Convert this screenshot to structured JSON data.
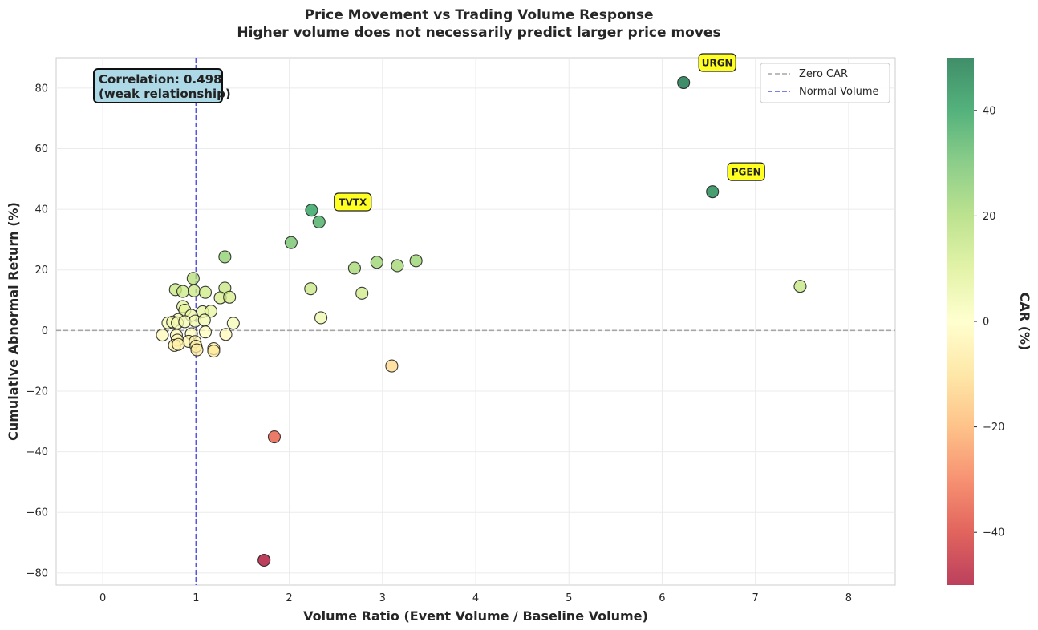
{
  "chart_data": {
    "type": "scatter",
    "title": "Price Movement vs Trading Volume Response",
    "subtitle": "Higher volume does not necessarily predict larger price moves",
    "xlabel": "Volume Ratio (Event Volume / Baseline Volume)",
    "ylabel": "Cumulative Abnormal Return (%)",
    "xlim": [
      -0.5,
      8.5
    ],
    "ylim": [
      -84,
      90
    ],
    "xticks": [
      0,
      1,
      2,
      3,
      4,
      5,
      6,
      7,
      8
    ],
    "yticks": [
      -80,
      -60,
      -40,
      -20,
      0,
      20,
      40,
      60,
      80
    ],
    "xtick_labels": [
      "0",
      "1",
      "2",
      "3",
      "4",
      "5",
      "6",
      "7",
      "8"
    ],
    "ytick_labels": [
      "−80",
      "−60",
      "−40",
      "−20",
      "0",
      "20",
      "40",
      "60",
      "80"
    ],
    "grid": true,
    "colormap": "RdYlGn",
    "colorbar": {
      "label": "CAR (%)",
      "range": [
        -50,
        50
      ],
      "ticks": [
        -40,
        -20,
        0,
        20,
        40
      ],
      "tick_labels": [
        "−40",
        "−20",
        "0",
        "20",
        "40"
      ]
    },
    "reference_lines": [
      {
        "orientation": "horizontal",
        "value": 0,
        "label": "Zero CAR",
        "color": "#a6a6a6"
      },
      {
        "orientation": "vertical",
        "value": 1,
        "label": "Normal Volume",
        "color": "#5555dd"
      }
    ],
    "legend": {
      "position": "top-right",
      "entries": [
        "Zero CAR",
        "Normal Volume"
      ]
    },
    "correlation_box": {
      "line1": "Correlation: 0.498",
      "line2": "(weak relationship)",
      "value": 0.498
    },
    "annotations": [
      {
        "label": "URGN",
        "x": 6.23,
        "y": 81.8
      },
      {
        "label": "PGEN",
        "x": 6.54,
        "y": 45.8
      },
      {
        "label": "TVTX",
        "x": 2.32,
        "y": 35.8
      }
    ],
    "points": [
      {
        "x": 6.23,
        "y": 81.8
      },
      {
        "x": 6.54,
        "y": 45.8
      },
      {
        "x": 7.48,
        "y": 14.6
      },
      {
        "x": 2.24,
        "y": 39.7
      },
      {
        "x": 2.32,
        "y": 35.8
      },
      {
        "x": 2.02,
        "y": 29.0
      },
      {
        "x": 2.7,
        "y": 20.6
      },
      {
        "x": 2.94,
        "y": 22.5
      },
      {
        "x": 3.16,
        "y": 21.4
      },
      {
        "x": 3.36,
        "y": 23.0
      },
      {
        "x": 2.23,
        "y": 13.8
      },
      {
        "x": 2.78,
        "y": 12.3
      },
      {
        "x": 2.34,
        "y": 4.2
      },
      {
        "x": 3.1,
        "y": -11.7
      },
      {
        "x": 1.84,
        "y": -35.1
      },
      {
        "x": 1.73,
        "y": -75.8
      },
      {
        "x": 1.31,
        "y": 24.3
      },
      {
        "x": 0.97,
        "y": 17.2
      },
      {
        "x": 0.78,
        "y": 13.5
      },
      {
        "x": 0.86,
        "y": 12.9
      },
      {
        "x": 0.98,
        "y": 13.1
      },
      {
        "x": 1.1,
        "y": 12.6
      },
      {
        "x": 1.31,
        "y": 14.0
      },
      {
        "x": 1.26,
        "y": 10.8
      },
      {
        "x": 1.36,
        "y": 11.0
      },
      {
        "x": 0.86,
        "y": 7.9
      },
      {
        "x": 0.88,
        "y": 6.7
      },
      {
        "x": 1.07,
        "y": 6.2
      },
      {
        "x": 1.16,
        "y": 6.4
      },
      {
        "x": 0.95,
        "y": 5.0
      },
      {
        "x": 0.81,
        "y": 3.6
      },
      {
        "x": 0.7,
        "y": 2.5
      },
      {
        "x": 0.75,
        "y": 2.8
      },
      {
        "x": 0.8,
        "y": 2.5
      },
      {
        "x": 0.88,
        "y": 2.9
      },
      {
        "x": 0.99,
        "y": 3.1
      },
      {
        "x": 1.09,
        "y": 3.4
      },
      {
        "x": 1.4,
        "y": 2.4
      },
      {
        "x": 0.64,
        "y": -1.5
      },
      {
        "x": 0.79,
        "y": -1.6
      },
      {
        "x": 0.95,
        "y": -1.1
      },
      {
        "x": 1.1,
        "y": -0.5
      },
      {
        "x": 1.32,
        "y": -1.3
      },
      {
        "x": 0.8,
        "y": -3.2
      },
      {
        "x": 0.92,
        "y": -3.6
      },
      {
        "x": 0.99,
        "y": -3.7
      },
      {
        "x": 0.77,
        "y": -4.9
      },
      {
        "x": 0.81,
        "y": -4.6
      },
      {
        "x": 1.0,
        "y": -5.2
      },
      {
        "x": 1.01,
        "y": -6.4
      },
      {
        "x": 1.19,
        "y": -6.0
      },
      {
        "x": 1.19,
        "y": -6.8
      }
    ]
  }
}
